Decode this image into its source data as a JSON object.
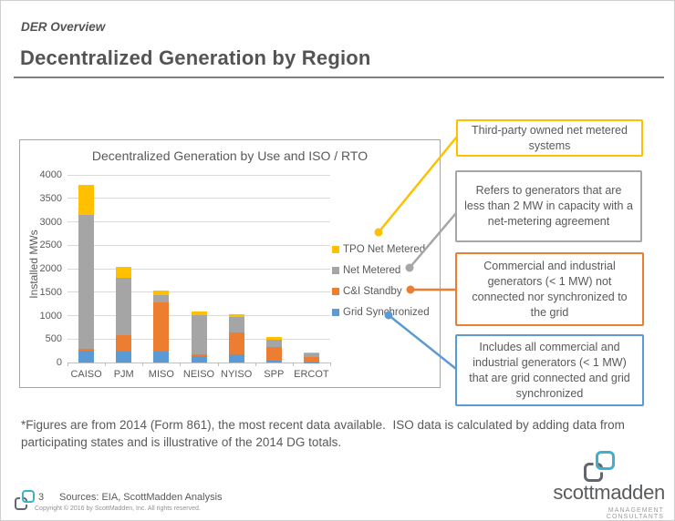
{
  "header": {
    "eyebrow": "DER Overview",
    "title": "Decentralized Generation by Region"
  },
  "chart_data": {
    "type": "bar",
    "stacked": true,
    "title": "Decentralized Generation by Use and ISO / RTO",
    "ylabel": "Installed MWs",
    "xlabel": "",
    "categories": [
      "CAISO",
      "PJM",
      "MISO",
      "NEISO",
      "NYISO",
      "SPP",
      "ERCOT"
    ],
    "series": [
      {
        "name": "Grid Synchronized",
        "color": "#5B9BD5",
        "values": [
          250,
          240,
          230,
          130,
          180,
          30,
          10
        ]
      },
      {
        "name": "C&I Standby",
        "color": "#ED7D31",
        "values": [
          40,
          340,
          1060,
          40,
          460,
          300,
          100
        ]
      },
      {
        "name": "Net Metered",
        "color": "#A5A5A5",
        "values": [
          2860,
          1220,
          150,
          840,
          340,
          160,
          80
        ]
      },
      {
        "name": "TPO Net Metered",
        "color": "#FFC000",
        "values": [
          630,
          230,
          90,
          80,
          50,
          50,
          20
        ]
      }
    ],
    "legend_order": [
      "TPO Net Metered",
      "Net Metered",
      "C&I Standby",
      "Grid Synchronized"
    ],
    "legend_position": "right",
    "grid": true,
    "ylim": [
      0,
      4000
    ],
    "ytick_step": 500
  },
  "callouts": [
    {
      "text": "Third-party owned net metered systems",
      "color": "#FFC000"
    },
    {
      "text": "Refers to generators that are less than 2 MW in capacity with a net-metering agreement",
      "color": "#A6A6A6"
    },
    {
      "text": "Commercial and industrial generators (< 1 MW) not connected nor synchronized to the grid",
      "color": "#ED7D31"
    },
    {
      "text": "Includes all commercial and industrial generators (< 1 MW) that are grid connected and grid synchronized",
      "color": "#5B9BD5"
    }
  ],
  "footnote": "*Figures are from 2014 (Form 861), the most recent data available.  ISO data is calculated by adding data from participating states and is illustrative of the 2014 DG totals.",
  "footer": {
    "page_number": "3",
    "sources": "Sources: EIA, ScottMadden Analysis",
    "copyright": "Copyright © 2016 by ScottMadden, Inc. All rights reserved.",
    "logo_text": "scottmadden",
    "logo_subtext": "MANAGEMENT CONSULTANTS"
  }
}
